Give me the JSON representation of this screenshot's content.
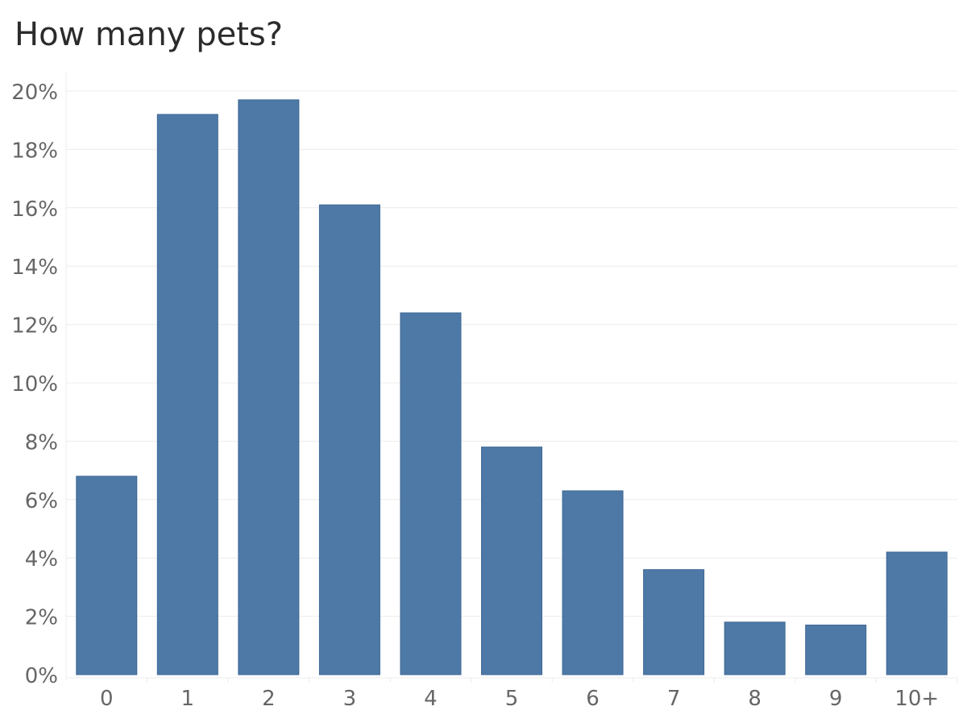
{
  "chart_data": {
    "type": "bar",
    "title": "How many pets?",
    "xlabel": "",
    "ylabel": "",
    "categories": [
      "0",
      "1",
      "2",
      "3",
      "4",
      "5",
      "6",
      "7",
      "8",
      "9",
      "10+"
    ],
    "values": [
      6.8,
      19.2,
      19.7,
      16.1,
      12.4,
      7.8,
      6.3,
      3.6,
      1.8,
      1.7,
      4.2
    ],
    "y_ticks": [
      "0%",
      "2%",
      "4%",
      "6%",
      "8%",
      "10%",
      "12%",
      "14%",
      "16%",
      "18%",
      "20%"
    ],
    "ylim": [
      0,
      20
    ],
    "grid": true,
    "legend": "none",
    "colors": {
      "bar_fill": "#4e79a7",
      "bar_stroke": "#3e6894",
      "grid": "#ececec",
      "tick_text": "#666666",
      "title_text": "#2b2b2b"
    }
  }
}
